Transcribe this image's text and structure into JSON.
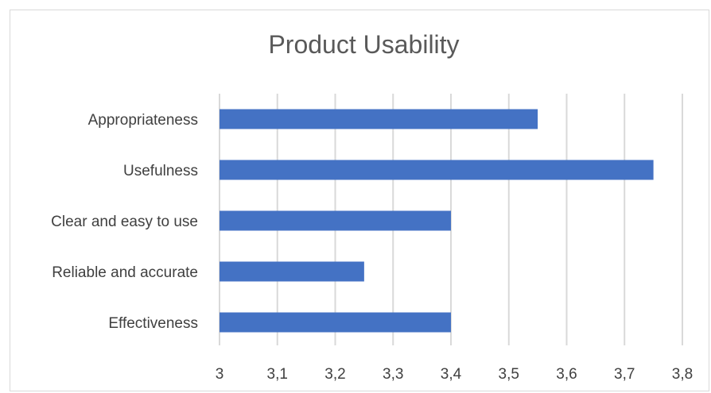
{
  "chart_data": {
    "type": "bar",
    "orientation": "horizontal",
    "title": "Product Usability",
    "xlabel": "",
    "ylabel": "",
    "categories": [
      "Appropriateness",
      "Usefulness",
      "Clear and easy to use",
      "Reliable and accurate",
      "Effectiveness"
    ],
    "values": [
      3.55,
      3.75,
      3.4,
      3.25,
      3.4
    ],
    "xlim": [
      3,
      3.8
    ],
    "x_ticks": [
      "3",
      "3,1",
      "3,2",
      "3,3",
      "3,4",
      "3,5",
      "3,6",
      "3,7",
      "3,8"
    ],
    "x_tick_values": [
      3,
      3.1,
      3.2,
      3.3,
      3.4,
      3.5,
      3.6,
      3.7,
      3.8
    ],
    "grid": true,
    "legend": "none",
    "bar_color": "#4472c4",
    "grid_color": "#d9d9d9"
  }
}
